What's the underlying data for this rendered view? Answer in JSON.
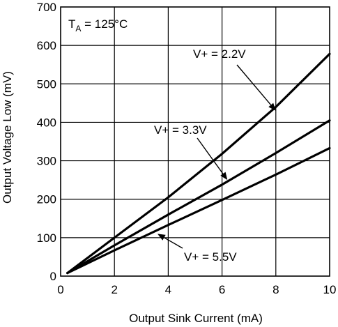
{
  "chart_data": {
    "type": "line",
    "title": "",
    "xlabel": "Output Sink Current (mA)",
    "ylabel": "Output Voltage Low (mV)",
    "xlim": [
      0,
      10
    ],
    "ylim": [
      0,
      700
    ],
    "xticks": [
      0,
      2,
      4,
      6,
      8,
      10
    ],
    "yticks": [
      0,
      100,
      200,
      300,
      400,
      500,
      600,
      700
    ],
    "grid": true,
    "condition": {
      "prefix": "T",
      "subscript": "A",
      "suffix": " = 125°C"
    },
    "series": [
      {
        "name": "V+ = 2.2V",
        "x": [
          0.25,
          2,
          4,
          6,
          8,
          10
        ],
        "y": [
          8,
          100,
          205,
          318,
          440,
          578
        ]
      },
      {
        "name": "V+ = 3.3V",
        "x": [
          0.25,
          2,
          4,
          6,
          8,
          10
        ],
        "y": [
          8,
          80,
          160,
          238,
          320,
          405
        ]
      },
      {
        "name": "V+ = 5.5V",
        "x": [
          0.25,
          2,
          4,
          6,
          8,
          10
        ],
        "y": [
          8,
          67,
          133,
          198,
          264,
          333
        ]
      }
    ]
  }
}
